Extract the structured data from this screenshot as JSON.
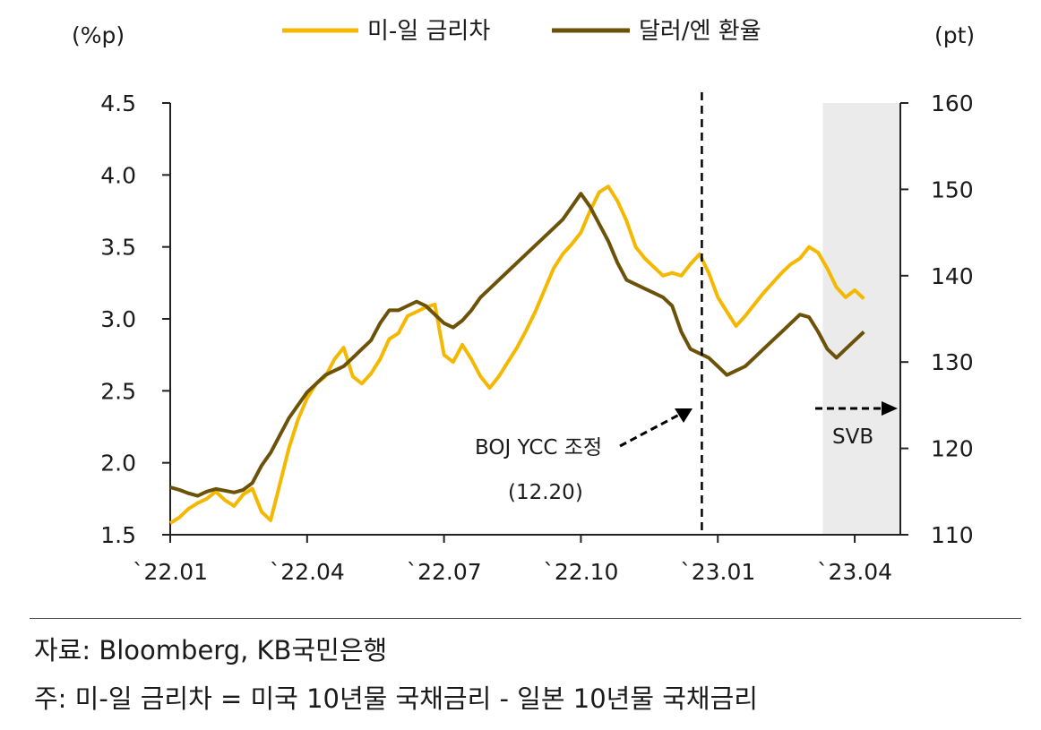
{
  "chart_data": {
    "type": "line",
    "left_unit": "(%p)",
    "right_unit": "(pt)",
    "left_axis": {
      "ticks": [
        "4.5",
        "4.0",
        "3.5",
        "3.0",
        "2.5",
        "2.0",
        "1.5"
      ],
      "values": [
        4.5,
        4.0,
        3.5,
        3.0,
        2.5,
        2.0,
        1.5
      ],
      "ylim": [
        1.5,
        4.5
      ]
    },
    "right_axis": {
      "ticks": [
        "160",
        "150",
        "140",
        "130",
        "120",
        "110"
      ],
      "values": [
        160,
        150,
        140,
        130,
        120,
        110
      ],
      "ylim": [
        110,
        160
      ]
    },
    "x_ticks": [
      "`22.01",
      "`22.04",
      "`22.07",
      "`22.10",
      "`23.01",
      "`23.04"
    ],
    "x_tick_months": [
      0,
      3,
      6,
      9,
      12,
      15
    ],
    "x_range_months": [
      0,
      16
    ],
    "series": [
      {
        "name": "미-일 금리차",
        "axis": "left",
        "color": "#F5B800",
        "x": [
          0,
          0.2,
          0.4,
          0.6,
          0.8,
          1.0,
          1.2,
          1.4,
          1.6,
          1.8,
          2.0,
          2.2,
          2.4,
          2.6,
          2.8,
          3.0,
          3.2,
          3.4,
          3.6,
          3.8,
          4.0,
          4.2,
          4.4,
          4.6,
          4.8,
          5.0,
          5.2,
          5.4,
          5.6,
          5.8,
          6.0,
          6.2,
          6.4,
          6.6,
          6.8,
          7.0,
          7.2,
          7.4,
          7.6,
          7.8,
          8.0,
          8.2,
          8.4,
          8.6,
          8.8,
          9.0,
          9.2,
          9.4,
          9.6,
          9.8,
          10.0,
          10.2,
          10.4,
          10.6,
          10.8,
          11.0,
          11.2,
          11.4,
          11.6,
          11.8,
          12.0,
          12.2,
          12.4,
          12.6,
          12.8,
          13.0,
          13.2,
          13.4,
          13.6,
          13.8,
          14.0,
          14.2,
          14.4,
          14.6,
          14.8,
          15.0,
          15.2
        ],
        "values": [
          1.58,
          1.62,
          1.68,
          1.72,
          1.75,
          1.8,
          1.74,
          1.7,
          1.78,
          1.82,
          1.66,
          1.6,
          1.85,
          2.1,
          2.3,
          2.45,
          2.55,
          2.6,
          2.72,
          2.8,
          2.6,
          2.55,
          2.62,
          2.72,
          2.86,
          2.9,
          3.02,
          3.05,
          3.08,
          3.1,
          2.75,
          2.7,
          2.82,
          2.72,
          2.6,
          2.52,
          2.6,
          2.7,
          2.8,
          2.92,
          3.05,
          3.2,
          3.35,
          3.45,
          3.52,
          3.6,
          3.75,
          3.88,
          3.92,
          3.82,
          3.68,
          3.5,
          3.42,
          3.36,
          3.3,
          3.32,
          3.3,
          3.38,
          3.45,
          3.32,
          3.15,
          3.05,
          2.95,
          3.02,
          3.1,
          3.18,
          3.25,
          3.32,
          3.38,
          3.42,
          3.5,
          3.46,
          3.35,
          3.22,
          3.15,
          3.2,
          3.14
        ]
      },
      {
        "name": "달러/엔 환율",
        "axis": "right",
        "color": "#6B5208",
        "x": [
          0,
          0.2,
          0.4,
          0.6,
          0.8,
          1.0,
          1.2,
          1.4,
          1.6,
          1.8,
          2.0,
          2.2,
          2.4,
          2.6,
          2.8,
          3.0,
          3.2,
          3.4,
          3.6,
          3.8,
          4.0,
          4.2,
          4.4,
          4.6,
          4.8,
          5.0,
          5.2,
          5.4,
          5.6,
          5.8,
          6.0,
          6.2,
          6.4,
          6.6,
          6.8,
          7.0,
          7.2,
          7.4,
          7.6,
          7.8,
          8.0,
          8.2,
          8.4,
          8.6,
          8.8,
          9.0,
          9.2,
          9.4,
          9.6,
          9.8,
          10.0,
          10.2,
          10.4,
          10.6,
          10.8,
          11.0,
          11.2,
          11.4,
          11.6,
          11.8,
          12.0,
          12.2,
          12.4,
          12.6,
          12.8,
          13.0,
          13.2,
          13.4,
          13.6,
          13.8,
          14.0,
          14.2,
          14.4,
          14.6,
          14.8,
          15.0,
          15.2
        ],
        "values": [
          115.5,
          115.2,
          114.8,
          114.5,
          115.0,
          115.3,
          115.1,
          114.9,
          115.2,
          116.0,
          118.0,
          119.5,
          121.5,
          123.5,
          125.0,
          126.5,
          127.5,
          128.5,
          129.0,
          129.5,
          130.5,
          131.5,
          132.5,
          134.5,
          136.0,
          136.0,
          136.5,
          137.0,
          136.5,
          135.5,
          134.5,
          134.0,
          134.8,
          136.0,
          137.5,
          138.5,
          139.5,
          140.5,
          141.5,
          142.5,
          143.5,
          144.5,
          145.5,
          146.5,
          148.0,
          149.5,
          148.0,
          146.0,
          144.0,
          141.5,
          139.5,
          139.0,
          138.5,
          138.0,
          137.5,
          136.5,
          133.5,
          131.5,
          131.0,
          130.5,
          129.5,
          128.5,
          129.0,
          129.5,
          130.5,
          131.5,
          132.5,
          133.5,
          134.5,
          135.5,
          135.2,
          133.5,
          131.5,
          130.5,
          131.5,
          132.5,
          133.5
        ]
      }
    ],
    "annotations": {
      "boj_label": "BOJ YCC 조정",
      "boj_date": "(12.20)",
      "boj_month": 11.65,
      "svb_label": "SVB",
      "svb_range_months": [
        14.3,
        16
      ]
    }
  },
  "legend": [
    {
      "label": "미-일 금리차",
      "color": "#F5B800"
    },
    {
      "label": "달러/엔 환율",
      "color": "#6B5208"
    }
  ],
  "footer": {
    "source": "자료: Bloomberg, KB국민은행",
    "note": "주: 미-일 금리차 = 미국 10년물 국채금리 - 일본 10년물 국채금리"
  }
}
